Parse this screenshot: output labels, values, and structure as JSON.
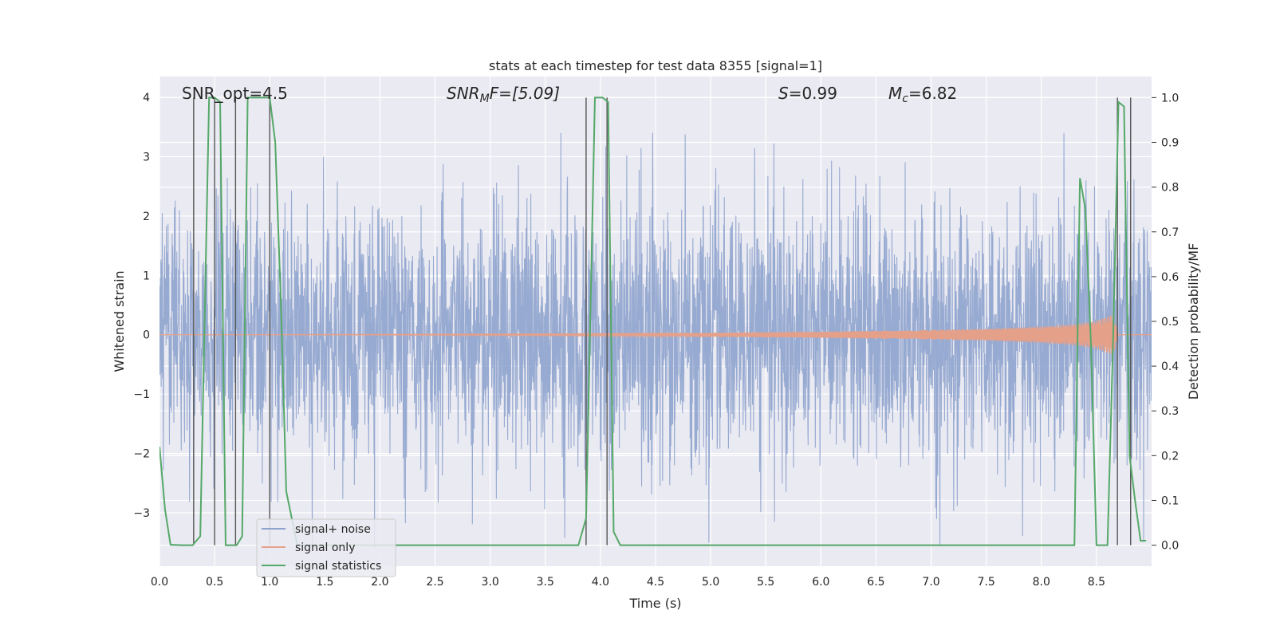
{
  "chart_data": {
    "type": "line",
    "title": "stats at each timestep for test data 8355 [signal=1]",
    "xlabel": "Time (s)",
    "ylabel": "Whitened strain",
    "y2label": "Detection probability/MF",
    "xlim": [
      0.0,
      9.0
    ],
    "ylim": [
      -3.9,
      4.35
    ],
    "y2lim": [
      -0.047,
      1.047
    ],
    "xticks": [
      "0.0",
      "0.5",
      "1.0",
      "1.5",
      "2.0",
      "2.5",
      "3.0",
      "3.5",
      "4.0",
      "4.5",
      "5.0",
      "5.5",
      "6.0",
      "6.5",
      "7.0",
      "7.5",
      "8.0",
      "8.5"
    ],
    "yticks": [
      "4",
      "3",
      "2",
      "1",
      "0",
      "−1",
      "−2",
      "−3"
    ],
    "y2ticks": [
      "1.0",
      "0.9",
      "0.8",
      "0.7",
      "0.6",
      "0.5",
      "0.4",
      "0.3",
      "0.2",
      "0.1",
      "0.0"
    ],
    "grid": true,
    "legend_position": "lower-left",
    "annotations": {
      "snr_opt": "SNR_opt=4.5",
      "snr_mf_main": "SNR",
      "snr_mf_sub": "M",
      "snr_mf_rest": "F=[5.09]",
      "s_main": "S",
      "s_rest": "=0.99",
      "mc_main": "M",
      "mc_sub": "c",
      "mc_rest": "=6.82"
    },
    "series": [
      {
        "name": "signal+ noise",
        "color": "#8ea3cd",
        "description_values": {
          "typical_amplitude": 1.8,
          "max_peak": 3.4,
          "min_peak": -3.6
        }
      },
      {
        "name": "signal only",
        "color": "#e5a08a",
        "envelope": [
          [
            0.0,
            0.0
          ],
          [
            4.0,
            0.02
          ],
          [
            5.0,
            0.03
          ],
          [
            6.0,
            0.05
          ],
          [
            7.0,
            0.08
          ],
          [
            7.5,
            0.1
          ],
          [
            8.0,
            0.14
          ],
          [
            8.3,
            0.18
          ],
          [
            8.5,
            0.24
          ],
          [
            8.65,
            0.35
          ],
          [
            8.7,
            0.0
          ],
          [
            9.0,
            0.0
          ]
        ]
      },
      {
        "name": "signal statistics",
        "color": "#55a868",
        "x": [
          0.0,
          0.05,
          0.1,
          0.2,
          0.25,
          0.3,
          0.37,
          0.45,
          0.5,
          0.55,
          0.6,
          0.7,
          0.75,
          0.8,
          0.9,
          1.0,
          1.05,
          1.1,
          1.15,
          1.25,
          1.3,
          1.5,
          2.0,
          2.5,
          3.0,
          3.5,
          3.8,
          3.87,
          3.95,
          4.02,
          4.07,
          4.12,
          4.18,
          4.5,
          5.0,
          6.0,
          7.0,
          8.0,
          8.25,
          8.3,
          8.35,
          8.4,
          8.45,
          8.5,
          8.55,
          8.6,
          8.65,
          8.7,
          8.75,
          8.8,
          8.85,
          8.9,
          8.95
        ],
        "y": [
          0.22,
          0.08,
          0.001,
          0.0,
          0.0,
          0.0,
          0.02,
          1.0,
          1.0,
          0.99,
          0.0,
          0.0,
          0.02,
          1.0,
          1.0,
          1.0,
          0.9,
          0.55,
          0.12,
          0.0,
          0.0,
          0.0,
          0.0,
          0.0,
          0.0,
          0.0,
          0.0,
          0.06,
          1.0,
          1.0,
          0.99,
          0.03,
          0.0,
          0.0,
          0.0,
          0.0,
          0.0,
          0.0,
          0.0,
          0.0,
          0.82,
          0.75,
          0.45,
          0.0,
          0.0,
          0.0,
          0.45,
          0.99,
          0.98,
          0.2,
          0.1,
          0.01,
          0.01
        ]
      }
    ],
    "vertical_markers_x": [
      0.31,
      0.5,
      0.69,
      1.0,
      3.87,
      4.06,
      8.69,
      8.81
    ]
  }
}
